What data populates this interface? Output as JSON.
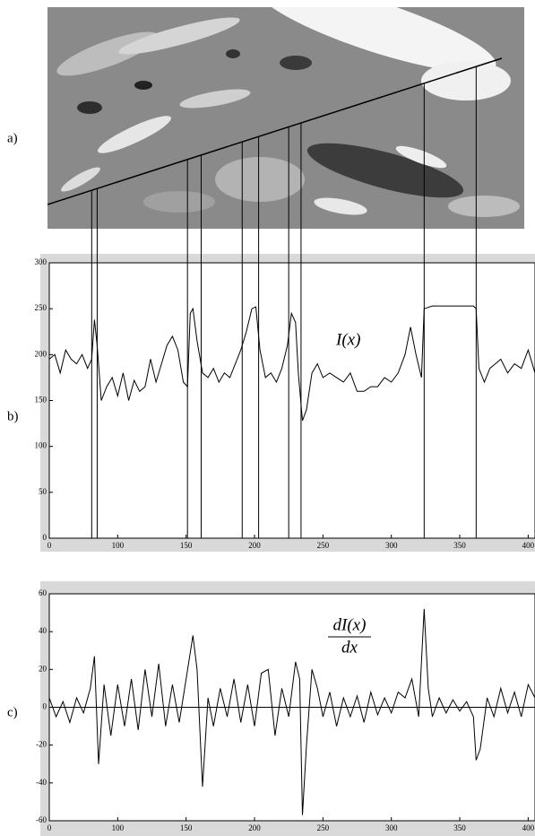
{
  "image_panel": {
    "label": "a)"
  },
  "chart_data": [
    {
      "type": "line",
      "panel_label": "b)",
      "annotation": "I(x)",
      "x": [
        50,
        54,
        58,
        62,
        66,
        70,
        74,
        78,
        81,
        83,
        85,
        88,
        92,
        96,
        100,
        104,
        108,
        112,
        116,
        120,
        124,
        128,
        132,
        136,
        140,
        144,
        148,
        151,
        153,
        155,
        158,
        162,
        166,
        170,
        174,
        178,
        182,
        186,
        190,
        194,
        198,
        201,
        204,
        208,
        212,
        216,
        220,
        224,
        227,
        230,
        232,
        235,
        238,
        242,
        246,
        250,
        255,
        260,
        265,
        270,
        275,
        280,
        285,
        290,
        295,
        300,
        305,
        310,
        314,
        318,
        322,
        324,
        330,
        340,
        350,
        360,
        362,
        364,
        368,
        372,
        376,
        380,
        385,
        390,
        395,
        400,
        405
      ],
      "values": [
        195,
        200,
        180,
        205,
        195,
        190,
        200,
        185,
        195,
        238,
        210,
        150,
        165,
        175,
        155,
        180,
        150,
        172,
        160,
        165,
        195,
        170,
        190,
        210,
        220,
        205,
        170,
        165,
        245,
        250,
        215,
        180,
        175,
        185,
        170,
        180,
        175,
        190,
        205,
        225,
        250,
        252,
        205,
        175,
        180,
        170,
        185,
        210,
        245,
        235,
        180,
        128,
        140,
        180,
        190,
        175,
        180,
        175,
        170,
        180,
        160,
        160,
        165,
        165,
        175,
        170,
        180,
        200,
        230,
        200,
        175,
        250,
        253,
        253,
        253,
        253,
        250,
        185,
        170,
        185,
        190,
        195,
        180,
        190,
        185,
        205,
        180
      ],
      "color": "#000000",
      "marker_x": [
        81,
        85,
        151,
        161,
        191,
        203,
        225,
        234,
        324,
        362
      ],
      "xlim": [
        50,
        405
      ],
      "xticks": [
        {
          "value": 50,
          "label": "0"
        },
        100,
        150,
        200,
        250,
        300,
        350,
        400
      ],
      "ylim": [
        0,
        300
      ],
      "yticks": [
        0,
        50,
        100,
        150,
        200,
        250,
        300
      ]
    },
    {
      "type": "line",
      "panel_label": "c)",
      "annotation": {
        "numerator": "dI(x)",
        "denominator": "dx"
      },
      "x": [
        50,
        55,
        60,
        65,
        70,
        75,
        80,
        83,
        86,
        90,
        95,
        100,
        105,
        110,
        115,
        120,
        125,
        130,
        135,
        140,
        145,
        150,
        155,
        158,
        162,
        166,
        170,
        175,
        180,
        185,
        190,
        195,
        200,
        205,
        210,
        215,
        220,
        225,
        230,
        233,
        235,
        238,
        242,
        246,
        250,
        255,
        260,
        265,
        270,
        275,
        280,
        285,
        290,
        295,
        300,
        305,
        310,
        315,
        320,
        324,
        327,
        330,
        335,
        340,
        345,
        350,
        355,
        360,
        362,
        365,
        370,
        375,
        380,
        385,
        390,
        395,
        400,
        405
      ],
      "values": [
        5,
        -5,
        3,
        -8,
        5,
        -3,
        10,
        27,
        -30,
        12,
        -15,
        12,
        -10,
        15,
        -12,
        20,
        -5,
        23,
        -10,
        12,
        -8,
        15,
        38,
        20,
        -42,
        5,
        -10,
        10,
        -5,
        15,
        -8,
        12,
        -10,
        18,
        20,
        -15,
        10,
        -5,
        24,
        15,
        -57,
        -20,
        20,
        10,
        -5,
        8,
        -10,
        5,
        -5,
        6,
        -8,
        8,
        -4,
        5,
        -3,
        8,
        5,
        15,
        -5,
        52,
        10,
        -5,
        5,
        -3,
        4,
        -2,
        3,
        -5,
        -28,
        -22,
        5,
        -5,
        10,
        -3,
        8,
        -5,
        12,
        5
      ],
      "color": "#000000",
      "xlim": [
        50,
        405
      ],
      "xticks": [
        {
          "value": 50,
          "label": "0"
        },
        100,
        150,
        200,
        250,
        300,
        350,
        400
      ],
      "ylim": [
        -60,
        60
      ],
      "yticks": [
        -60,
        -40,
        -20,
        0,
        20,
        40,
        60
      ]
    }
  ]
}
